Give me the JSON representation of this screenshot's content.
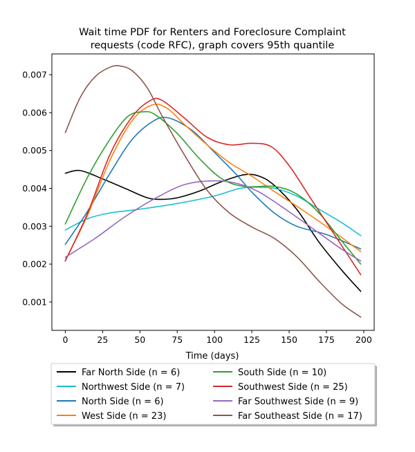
{
  "chart_data": {
    "type": "line",
    "title_line1": "Wait time PDF for Renters and Foreclosure Complaint",
    "title_line2": "requests (code RFC), graph covers 95th quantile",
    "xlabel": "Time (days)",
    "ylabel": "",
    "xlim": [
      -9,
      207
    ],
    "ylim": [
      0.00025,
      0.00755
    ],
    "xticks": [
      0,
      25,
      50,
      75,
      100,
      125,
      150,
      175,
      200
    ],
    "yticks": [
      0.001,
      0.002,
      0.003,
      0.004,
      0.005,
      0.006,
      0.007
    ],
    "ytick_labels": [
      "0.001",
      "0.002",
      "0.003",
      "0.004",
      "0.005",
      "0.006",
      "0.007"
    ],
    "grid": false,
    "legend_placement": "bottom-outside",
    "series": [
      {
        "name": "Far North Side (n = 6)",
        "color": "#000000",
        "points": [
          [
            0,
            0.0044
          ],
          [
            10,
            0.00447
          ],
          [
            25,
            0.00425
          ],
          [
            40,
            0.004
          ],
          [
            55,
            0.00375
          ],
          [
            65,
            0.00371
          ],
          [
            75,
            0.00375
          ],
          [
            90,
            0.00393
          ],
          [
            105,
            0.00418
          ],
          [
            120,
            0.00436
          ],
          [
            130,
            0.00432
          ],
          [
            140,
            0.00408
          ],
          [
            155,
            0.00345
          ],
          [
            170,
            0.00258
          ],
          [
            185,
            0.00185
          ],
          [
            198,
            0.00128
          ]
        ]
      },
      {
        "name": "Northwest Side (n = 7)",
        "color": "#17becf",
        "points": [
          [
            0,
            0.0029
          ],
          [
            15,
            0.0032
          ],
          [
            30,
            0.00335
          ],
          [
            50,
            0.00345
          ],
          [
            75,
            0.0036
          ],
          [
            100,
            0.0038
          ],
          [
            115,
            0.00398
          ],
          [
            125,
            0.00403
          ],
          [
            140,
            0.004
          ],
          [
            155,
            0.0038
          ],
          [
            170,
            0.00345
          ],
          [
            185,
            0.0031
          ],
          [
            198,
            0.00275
          ]
        ]
      },
      {
        "name": "North Side (n = 6)",
        "color": "#1f77b4",
        "points": [
          [
            0,
            0.00252
          ],
          [
            15,
            0.0034
          ],
          [
            30,
            0.0044
          ],
          [
            45,
            0.0053
          ],
          [
            60,
            0.0058
          ],
          [
            70,
            0.00585
          ],
          [
            85,
            0.00553
          ],
          [
            100,
            0.00495
          ],
          [
            115,
            0.00435
          ],
          [
            125,
            0.0039
          ],
          [
            140,
            0.00335
          ],
          [
            155,
            0.003
          ],
          [
            175,
            0.00278
          ],
          [
            198,
            0.0024
          ]
        ]
      },
      {
        "name": "West Side (n = 23)",
        "color": "#ff7f0e",
        "points": [
          [
            0,
            0.0021
          ],
          [
            15,
            0.0033
          ],
          [
            30,
            0.00475
          ],
          [
            45,
            0.0058
          ],
          [
            58,
            0.0062
          ],
          [
            68,
            0.00612
          ],
          [
            80,
            0.00568
          ],
          [
            95,
            0.00515
          ],
          [
            110,
            0.00468
          ],
          [
            125,
            0.00432
          ],
          [
            140,
            0.00392
          ],
          [
            160,
            0.0034
          ],
          [
            180,
            0.00285
          ],
          [
            198,
            0.00233
          ]
        ]
      },
      {
        "name": "South Side (n = 10)",
        "color": "#2ca02c",
        "points": [
          [
            0,
            0.00306
          ],
          [
            15,
            0.0043
          ],
          [
            30,
            0.0053
          ],
          [
            42,
            0.0059
          ],
          [
            52,
            0.00602
          ],
          [
            60,
            0.00595
          ],
          [
            75,
            0.00545
          ],
          [
            90,
            0.00478
          ],
          [
            105,
            0.00425
          ],
          [
            120,
            0.00405
          ],
          [
            140,
            0.00405
          ],
          [
            155,
            0.00385
          ],
          [
            170,
            0.00335
          ],
          [
            185,
            0.00262
          ],
          [
            198,
            0.002
          ]
        ]
      },
      {
        "name": "Southwest Side (n = 25)",
        "color": "#d62728",
        "points": [
          [
            0,
            0.00208
          ],
          [
            15,
            0.00335
          ],
          [
            30,
            0.0049
          ],
          [
            45,
            0.0059
          ],
          [
            57,
            0.00632
          ],
          [
            65,
            0.00632
          ],
          [
            80,
            0.00585
          ],
          [
            95,
            0.00535
          ],
          [
            110,
            0.00515
          ],
          [
            125,
            0.00519
          ],
          [
            138,
            0.0051
          ],
          [
            150,
            0.0046
          ],
          [
            165,
            0.0037
          ],
          [
            180,
            0.0028
          ],
          [
            198,
            0.00172
          ]
        ]
      },
      {
        "name": "Far Southwest Side (n = 9)",
        "color": "#9467bd",
        "points": [
          [
            0,
            0.00218
          ],
          [
            20,
            0.00268
          ],
          [
            40,
            0.00325
          ],
          [
            60,
            0.00373
          ],
          [
            80,
            0.0041
          ],
          [
            100,
            0.0042
          ],
          [
            115,
            0.00413
          ],
          [
            130,
            0.0039
          ],
          [
            150,
            0.00338
          ],
          [
            170,
            0.00282
          ],
          [
            185,
            0.0024
          ],
          [
            198,
            0.00208
          ]
        ]
      },
      {
        "name": "Far Southeast Side (n = 17)",
        "color": "#8c564b",
        "points": [
          [
            0,
            0.00547
          ],
          [
            10,
            0.0064
          ],
          [
            20,
            0.00695
          ],
          [
            30,
            0.0072
          ],
          [
            37,
            0.00723
          ],
          [
            45,
            0.0071
          ],
          [
            55,
            0.00665
          ],
          [
            65,
            0.0059
          ],
          [
            80,
            0.00487
          ],
          [
            95,
            0.00395
          ],
          [
            110,
            0.00335
          ],
          [
            125,
            0.00298
          ],
          [
            140,
            0.00268
          ],
          [
            155,
            0.0022
          ],
          [
            170,
            0.00155
          ],
          [
            185,
            0.00096
          ],
          [
            198,
            0.0006
          ]
        ]
      }
    ]
  }
}
